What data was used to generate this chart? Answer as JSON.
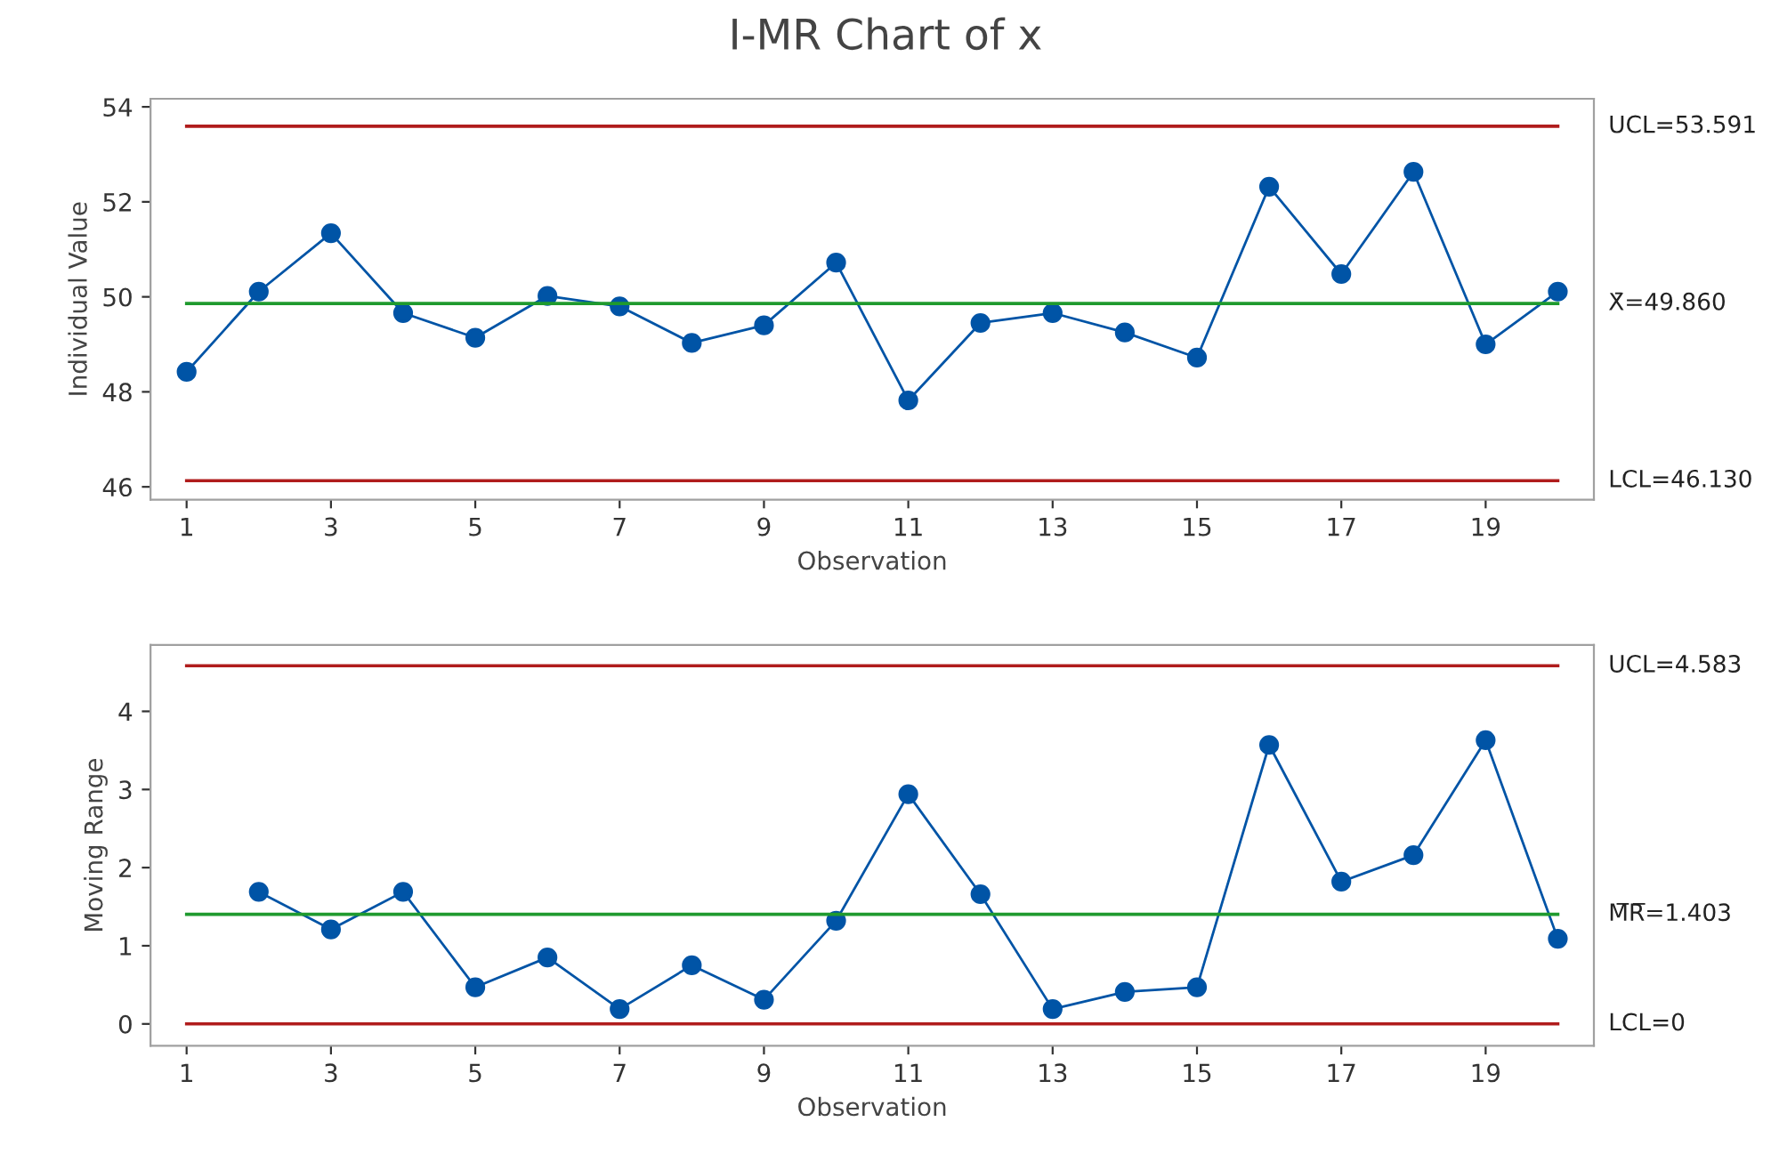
{
  "chart_data": [
    {
      "type": "line",
      "title": "I-MR Chart of x",
      "xlabel": "Observation",
      "ylabel": "Individual Value",
      "x": [
        1,
        2,
        3,
        4,
        5,
        6,
        7,
        8,
        9,
        10,
        11,
        12,
        13,
        14,
        15,
        16,
        17,
        18,
        19,
        20
      ],
      "series": [
        {
          "color": "#0054a6",
          "values": [
            48.42,
            50.11,
            51.34,
            49.66,
            49.14,
            50.02,
            49.8,
            49.03,
            49.4,
            50.72,
            47.82,
            49.45,
            49.66,
            49.25,
            48.72,
            52.32,
            50.48,
            52.63,
            49.0,
            50.11
          ]
        }
      ],
      "xlim": [
        0.5,
        20.5
      ],
      "xticks": [
        1,
        3,
        5,
        7,
        9,
        11,
        13,
        15,
        17,
        19
      ],
      "ylim": [
        45.73,
        54.17
      ],
      "yticks": [
        46,
        48,
        50,
        52,
        54
      ],
      "ref_lines": [
        {
          "axis": "y",
          "value": 53.591,
          "label": "UCL=53.591",
          "color": "#b01c1c"
        },
        {
          "axis": "y",
          "value": 49.86,
          "label": "X̄=49.860",
          "color": "#1f9a2e"
        },
        {
          "axis": "y",
          "value": 46.13,
          "label": "LCL=46.130",
          "color": "#b01c1c"
        }
      ],
      "marker": "circle",
      "line_style": "solid",
      "grid": false,
      "legend": false
    },
    {
      "type": "line",
      "xlabel": "Observation",
      "ylabel": "Moving Range",
      "series": [
        {
          "color": "#0054a6",
          "x": [
            2,
            3,
            4,
            5,
            6,
            7,
            8,
            9,
            10,
            11,
            12,
            13,
            14,
            15,
            16,
            17,
            18,
            19,
            20
          ],
          "values": [
            1.69,
            1.21,
            1.69,
            0.47,
            0.85,
            0.19,
            0.75,
            0.31,
            1.32,
            2.94,
            1.66,
            0.19,
            0.41,
            0.47,
            3.57,
            1.82,
            2.16,
            3.63,
            1.09
          ]
        }
      ],
      "xlim": [
        0.5,
        20.5
      ],
      "xticks": [
        1,
        3,
        5,
        7,
        9,
        11,
        13,
        15,
        17,
        19
      ],
      "ylim": [
        -0.28,
        4.85
      ],
      "yticks": [
        0,
        1,
        2,
        3,
        4
      ],
      "ref_lines": [
        {
          "axis": "y",
          "value": 4.583,
          "label": "UCL=4.583",
          "color": "#b01c1c"
        },
        {
          "axis": "y",
          "value": 1.403,
          "label": "M̅R̅=1.403",
          "color": "#1f9a2e"
        },
        {
          "axis": "y",
          "value": 0,
          "label": "LCL=0",
          "color": "#b01c1c"
        }
      ],
      "marker": "circle",
      "line_style": "solid",
      "grid": false,
      "legend": false
    }
  ]
}
